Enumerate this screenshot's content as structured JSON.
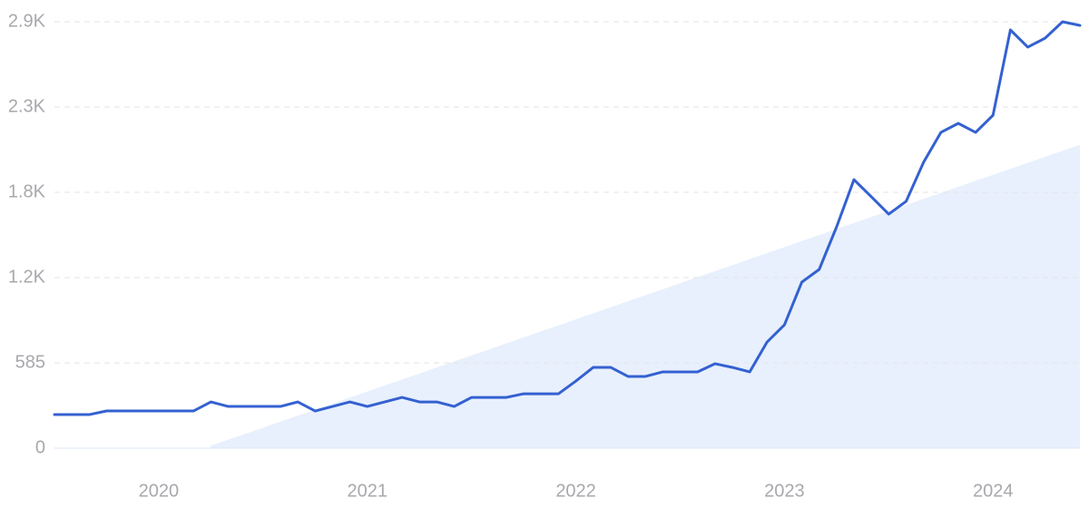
{
  "chart_data": {
    "type": "line",
    "categories": [
      null,
      null,
      null,
      null,
      null,
      null,
      "2020",
      null,
      null,
      null,
      null,
      null,
      null,
      null,
      null,
      null,
      null,
      null,
      "2021",
      null,
      null,
      null,
      null,
      null,
      null,
      null,
      null,
      null,
      null,
      null,
      "2022",
      null,
      null,
      null,
      null,
      null,
      null,
      null,
      null,
      null,
      null,
      null,
      "2023",
      null,
      null,
      null,
      null,
      null,
      null,
      null,
      null,
      null,
      null,
      null,
      "2024",
      null,
      null,
      null,
      null,
      null
    ],
    "series": [
      {
        "color": "#3461d1",
        "values": [
          230,
          230,
          230,
          255,
          255,
          255,
          255,
          255,
          255,
          317,
          286,
          286,
          286,
          286,
          317,
          255,
          286,
          317,
          286,
          317,
          348,
          317,
          317,
          286,
          348,
          348,
          348,
          373,
          373,
          373,
          460,
          554,
          554,
          492,
          492,
          523,
          523,
          523,
          579,
          554,
          523,
          728,
          846,
          1139,
          1226,
          1518,
          1842,
          1724,
          1605,
          1693,
          1960,
          2166,
          2228,
          2166,
          2284,
          2869,
          2751,
          2813,
          2925,
          2900
        ]
      },
      {
        "color": "#e8f0fd",
        "values": [
          null,
          null,
          null,
          null,
          null,
          null,
          null,
          null,
          null,
          17,
          58,
          99,
          140,
          182,
          223,
          264,
          306,
          347,
          388,
          430,
          471,
          512,
          553,
          595,
          636,
          677,
          719,
          760,
          801,
          842,
          884,
          925,
          966,
          1008,
          1049,
          1090,
          1132,
          1173,
          1214,
          1255,
          1297,
          1338,
          1379,
          1421,
          1462,
          1503,
          1544,
          1586,
          1627,
          1668,
          1710,
          1751,
          1792,
          1834,
          1875,
          1916,
          1957,
          1999,
          2040,
          2081
        ]
      }
    ],
    "ylim": [
      0,
      2925
    ],
    "yticks": [
      0,
      585,
      {
        "value": 1170,
        "label": "1.2K"
      },
      {
        "value": 1755,
        "label": "1.8K"
      },
      {
        "value": 2340,
        "label": "2.3K"
      },
      {
        "value": 2925,
        "label": "2.9K"
      }
    ],
    "grid": true
  }
}
